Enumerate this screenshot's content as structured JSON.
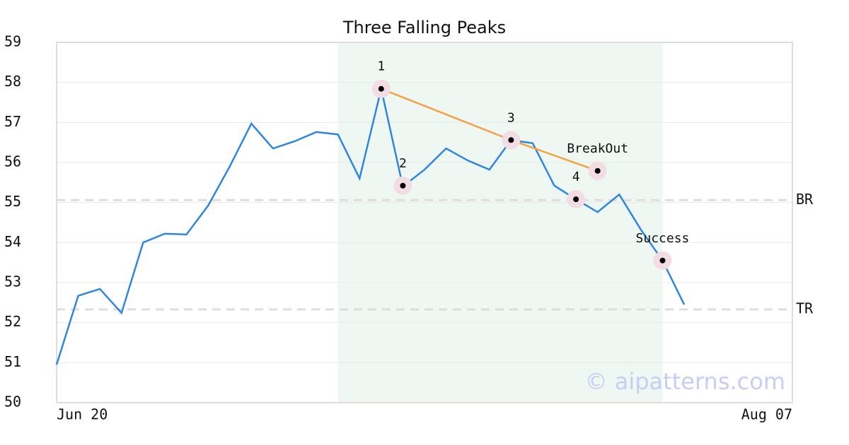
{
  "chart_data": {
    "type": "line",
    "title": "Three Falling Peaks",
    "x": [
      0,
      1,
      2,
      3,
      4,
      5,
      6,
      7,
      8,
      9,
      10,
      11,
      12,
      13,
      14,
      15,
      16,
      17,
      18,
      19,
      20,
      21,
      22,
      23,
      24,
      25,
      26,
      27,
      28,
      29
    ],
    "series": [
      {
        "color": "#2e86de",
        "values": [
          50.95,
          52.67,
          52.84,
          52.24,
          54.0,
          54.22,
          54.2,
          54.92,
          55.9,
          56.97,
          56.35,
          56.53,
          56.76,
          56.7,
          55.6,
          57.84,
          55.4,
          55.82,
          56.35,
          56.05,
          55.82,
          56.56,
          56.48,
          55.42,
          55.08,
          54.76,
          55.2,
          54.32,
          53.55,
          52.45
        ]
      }
    ],
    "xlim": [
      0,
      34
    ],
    "xticks": [
      {
        "value": 0,
        "label": "Jun 20"
      },
      {
        "value": 34,
        "label": "Aug 07"
      }
    ],
    "ylim": [
      50,
      59
    ],
    "yticks": [
      50,
      51,
      52,
      53,
      54,
      55,
      56,
      57,
      58,
      59
    ],
    "grid": true,
    "highlight": {
      "from": 13,
      "to": 28,
      "color": "#eef7f2"
    },
    "levels": [
      {
        "label": "BR",
        "value": 55.06
      },
      {
        "label": "TR",
        "value": 52.33
      }
    ],
    "trendline": {
      "color": "#f5a142",
      "x": [
        15,
        21,
        25
      ],
      "y": [
        57.84,
        56.56,
        55.79
      ]
    },
    "annotations": [
      {
        "label": "1",
        "x": 15,
        "y": 57.84
      },
      {
        "label": "2",
        "x": 16,
        "y": 55.42
      },
      {
        "label": "3",
        "x": 21,
        "y": 56.56
      },
      {
        "label": "4",
        "x": 24,
        "y": 55.08
      },
      {
        "label": "BreakOut",
        "x": 25,
        "y": 55.79
      },
      {
        "label": "Success",
        "x": 28,
        "y": 53.55
      }
    ],
    "watermark": "© aipatterns.com"
  }
}
